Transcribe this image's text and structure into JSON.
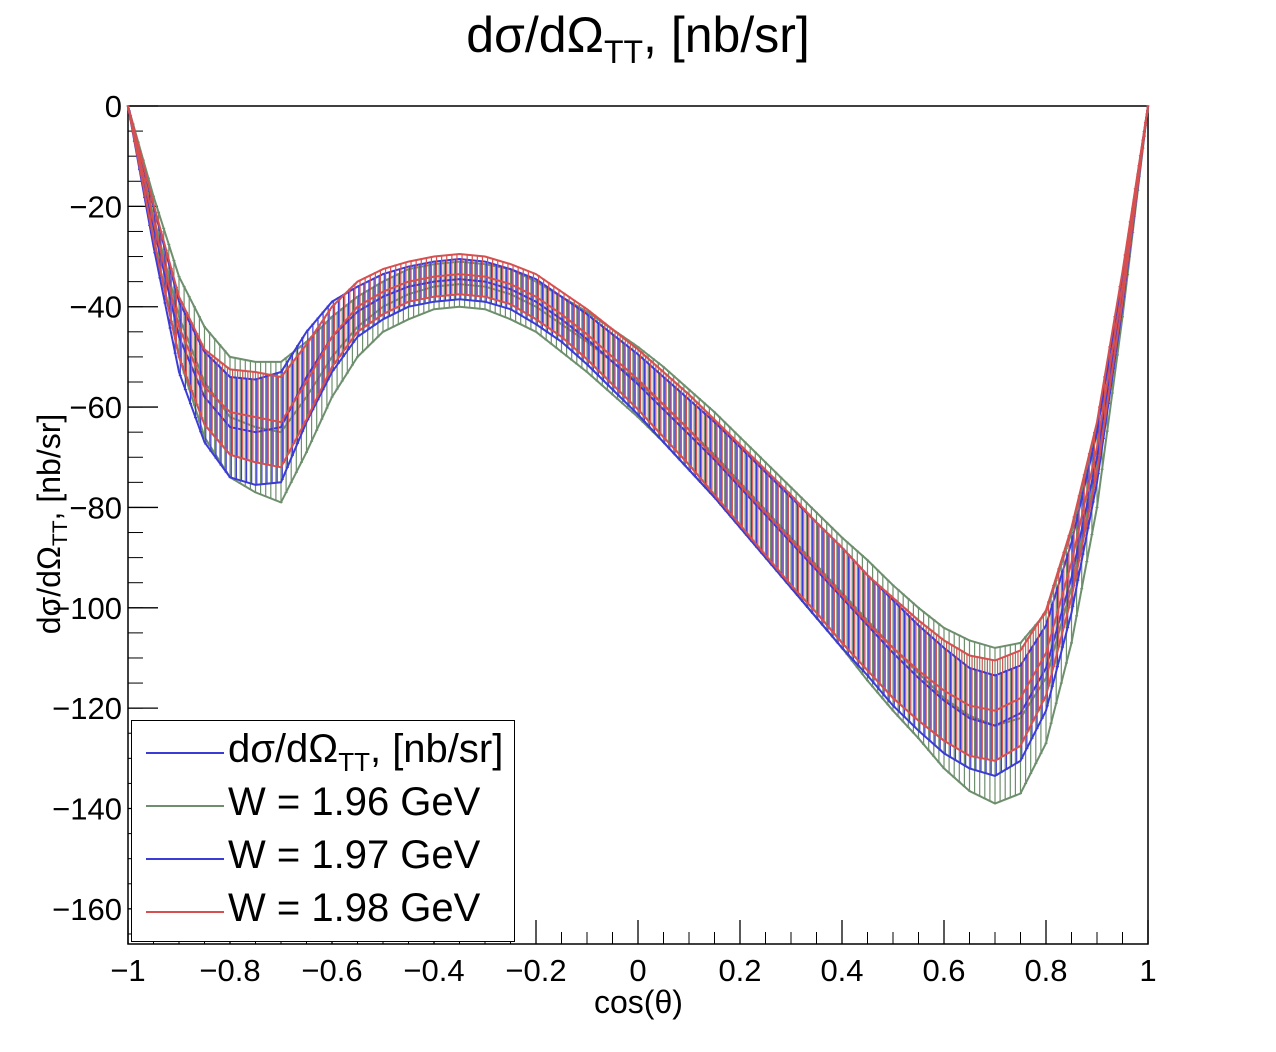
{
  "colors": {
    "w196": "#6e8f6e",
    "w197": "#3b3bd6",
    "w198": "#d65050",
    "frame": "#000000"
  },
  "chart_data": {
    "type": "line",
    "title_main": "dσ/dΩ",
    "title_sub": "TT",
    "title_tail": ", [nb/sr]",
    "xlabel": "cos(θ)",
    "ylabel_main": "dσ/dΩ",
    "ylabel_sub": "TT",
    "ylabel_tail": ", [nb/sr]",
    "xlim": [
      -1,
      1
    ],
    "ylim": [
      -167,
      0
    ],
    "x_ticks": [
      -1,
      -0.8,
      -0.6,
      -0.4,
      -0.2,
      0,
      0.2,
      0.4,
      0.6,
      0.8,
      1
    ],
    "x_tick_labels": [
      "−1",
      "−0.8",
      "−0.6",
      "−0.4",
      "−0.2",
      "0",
      "0.2",
      "0.4",
      "0.6",
      "0.8",
      "1"
    ],
    "y_ticks": [
      0,
      -20,
      -40,
      -60,
      -80,
      -100,
      -120,
      -140,
      -160
    ],
    "y_tick_labels": [
      "0",
      "−20",
      "−40",
      "−60",
      "−80",
      "−100",
      "−120",
      "−140",
      "−160"
    ],
    "x": [
      -1.0,
      -0.95,
      -0.9,
      -0.85,
      -0.8,
      -0.75,
      -0.7,
      -0.65,
      -0.6,
      -0.55,
      -0.5,
      -0.45,
      -0.4,
      -0.35,
      -0.3,
      -0.25,
      -0.2,
      -0.15,
      -0.1,
      -0.05,
      0.0,
      0.05,
      0.1,
      0.15,
      0.2,
      0.25,
      0.3,
      0.35,
      0.4,
      0.45,
      0.5,
      0.55,
      0.6,
      0.65,
      0.7,
      0.75,
      0.8,
      0.85,
      0.9,
      0.95,
      1.0
    ],
    "series": [
      {
        "name": "W = 1.96 GeV",
        "color_key": "w196",
        "values": [
          0,
          -22,
          -42,
          -55,
          -62,
          -64,
          -65,
          -58,
          -50,
          -44,
          -40,
          -37.5,
          -36,
          -35.5,
          -36,
          -37.5,
          -40,
          -43.5,
          -47,
          -51,
          -55,
          -59.5,
          -64.5,
          -69.5,
          -75,
          -80.5,
          -86,
          -91.5,
          -97,
          -102.5,
          -108,
          -113,
          -118,
          -121.5,
          -123.5,
          -122,
          -114,
          -96,
          -72,
          -38,
          0
        ],
        "errors": [
          0,
          4,
          8,
          11,
          12,
          13,
          14,
          11,
          8,
          6,
          5,
          5,
          4.5,
          4.5,
          4.5,
          5,
          5,
          5.5,
          6,
          6.5,
          7,
          7.5,
          8,
          8.5,
          9,
          9.5,
          10,
          10.5,
          11,
          12,
          12.5,
          13,
          14,
          15,
          15.5,
          15,
          13,
          11,
          8,
          4,
          0
        ]
      },
      {
        "name": "W = 1.97 GeV",
        "color_key": "w197",
        "values": [
          0,
          -24,
          -46,
          -58,
          -64,
          -65,
          -64,
          -54,
          -46,
          -41,
          -38,
          -36,
          -35,
          -34.5,
          -35,
          -36.5,
          -39,
          -42.5,
          -46.5,
          -51,
          -55.5,
          -60.5,
          -65.5,
          -70.5,
          -76,
          -81.5,
          -87,
          -92.5,
          -98,
          -103.5,
          -109,
          -114,
          -118.5,
          -122,
          -123.5,
          -121,
          -112,
          -94,
          -70,
          -37,
          0
        ],
        "errors": [
          0,
          4,
          7,
          9,
          10,
          10.5,
          11,
          9,
          7,
          5,
          4.5,
          4,
          4,
          4,
          4,
          4,
          4.5,
          4.5,
          5,
          5.5,
          6,
          6.5,
          7,
          7.5,
          8,
          8.5,
          9,
          9.5,
          10,
          10,
          10.5,
          10.5,
          10.5,
          10,
          10,
          9.5,
          8.5,
          7,
          5,
          3,
          0
        ]
      },
      {
        "name": "W = 1.98 GeV",
        "color_key": "w198",
        "values": [
          0,
          -23,
          -44,
          -56,
          -61,
          -62,
          -63,
          -55,
          -46,
          -40,
          -37,
          -35,
          -34,
          -33.5,
          -34,
          -35.5,
          -38,
          -41.5,
          -45.5,
          -50,
          -54.5,
          -59.5,
          -64.5,
          -70,
          -75.5,
          -81,
          -86.5,
          -92,
          -97.5,
          -103,
          -108,
          -112.5,
          -116.5,
          -119.5,
          -120.5,
          -118,
          -109,
          -91,
          -68,
          -36,
          0
        ],
        "errors": [
          0,
          3.5,
          6,
          7.5,
          8.5,
          9,
          9,
          7.5,
          6,
          5,
          4.5,
          4,
          4,
          4,
          4,
          4,
          4.5,
          4.5,
          5,
          5.5,
          6,
          6.5,
          7,
          7.5,
          8,
          8.5,
          9,
          9,
          9.5,
          9.5,
          10,
          10,
          10,
          10,
          10,
          9.5,
          8.5,
          7,
          5,
          3,
          0
        ]
      }
    ]
  },
  "legend": {
    "entries": [
      {
        "label_main": "dσ/dΩ",
        "label_sub": "TT",
        "label_tail": ", [nb/sr]",
        "color_key": "w197"
      },
      {
        "label": "W = 1.96 GeV",
        "color_key": "w196"
      },
      {
        "label": "W = 1.97 GeV",
        "color_key": "w197"
      },
      {
        "label": "W = 1.98 GeV",
        "color_key": "w198"
      }
    ]
  }
}
